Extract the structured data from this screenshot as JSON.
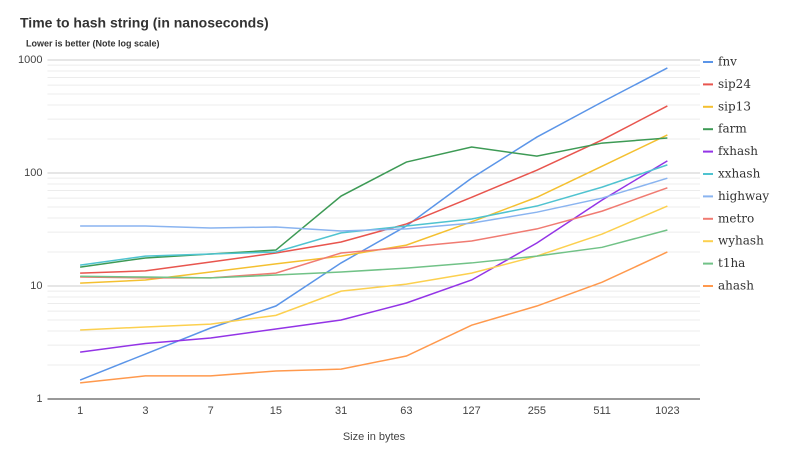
{
  "chart_data": {
    "type": "line",
    "title": "Time to hash string (in nanoseconds)",
    "subtitle": "Lower is better (Note log scale)",
    "x_label": "Size in bytes",
    "categories": [
      "1",
      "3",
      "7",
      "15",
      "31",
      "63",
      "127",
      "255",
      "511",
      "1023"
    ],
    "log_scale": true,
    "grid": true,
    "legend": "right",
    "ylim": [
      1,
      1000
    ],
    "yticks": [
      1,
      10,
      100,
      1000
    ],
    "series": [
      {
        "name": "fnv",
        "color": "#5b95e8",
        "values": [
          1.47,
          2.5,
          4.25,
          6.65,
          16,
          34,
          90,
          208,
          425,
          850
        ]
      },
      {
        "name": "sip24",
        "color": "#e8554e",
        "values": [
          13,
          13.6,
          16.3,
          19.6,
          24.5,
          35.4,
          61,
          106,
          196,
          392
        ]
      },
      {
        "name": "sip13",
        "color": "#f4c030",
        "values": [
          10.6,
          11.3,
          13.3,
          15.7,
          18.4,
          23,
          37,
          61,
          115,
          217
        ]
      },
      {
        "name": "farm",
        "color": "#3d9a55",
        "values": [
          14.7,
          17.7,
          19.2,
          20.8,
          62.5,
          125,
          170,
          141,
          184,
          204
        ]
      },
      {
        "name": "fxhash",
        "color": "#9334e6",
        "values": [
          2.6,
          3.1,
          3.47,
          4.16,
          5.0,
          7.07,
          11.3,
          24,
          57.7,
          128
        ]
      },
      {
        "name": "xxhash",
        "color": "#4fc3d0",
        "values": [
          15.3,
          18.4,
          19.2,
          20,
          29.5,
          34,
          39.2,
          51,
          75,
          118
        ]
      },
      {
        "name": "highway",
        "color": "#8ab4f0",
        "values": [
          34,
          34,
          32.6,
          33.3,
          30.7,
          32,
          36,
          45,
          60,
          90
        ]
      },
      {
        "name": "metro",
        "color": "#f07b72",
        "values": [
          12,
          11.8,
          11.8,
          13,
          19.6,
          22,
          25,
          32,
          46,
          74
        ]
      },
      {
        "name": "wyhash",
        "color": "#fcd04f",
        "values": [
          4.08,
          4.34,
          4.6,
          5.5,
          9.0,
          10.4,
          13,
          18.4,
          28.8,
          51
        ]
      },
      {
        "name": "t1ha",
        "color": "#71c287",
        "values": [
          12.2,
          12,
          11.8,
          12.5,
          13.3,
          14.4,
          16,
          18.4,
          22,
          31.3
        ]
      },
      {
        "name": "ahash",
        "color": "#ff994d",
        "values": [
          1.39,
          1.6,
          1.6,
          1.77,
          1.84,
          2.4,
          4.5,
          6.65,
          10.8,
          20
        ]
      }
    ]
  }
}
